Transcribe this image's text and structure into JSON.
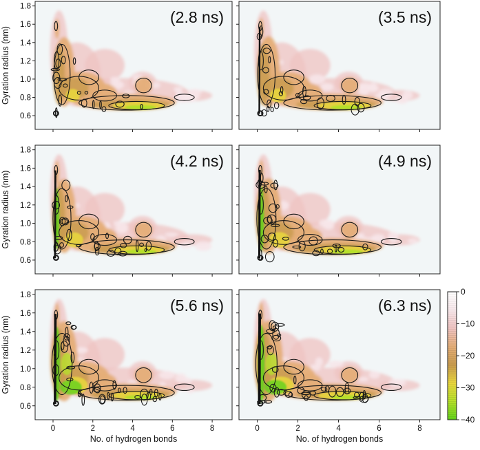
{
  "chart_data": {
    "type": "heatmap",
    "layout": "3 rows x 2 columns, shared x and y axes",
    "x_axis": {
      "label": "No. of hydrogen bonds",
      "range": [
        -0.9,
        9.0
      ],
      "ticks": [
        0,
        2,
        4,
        6,
        8
      ],
      "tick_labels": [
        "0",
        "2",
        "4",
        "6",
        "8"
      ]
    },
    "y_axis": {
      "label": "Gyration radius (nm)",
      "range": [
        0.45,
        1.85
      ],
      "ticks": [
        0.6,
        0.8,
        1.0,
        1.2,
        1.4,
        1.6,
        1.8
      ],
      "tick_labels": [
        "0.6",
        "0.8",
        "1.0",
        "1.2",
        "1.4",
        "1.6",
        "1.8"
      ]
    },
    "colorbar": {
      "range": [
        -40,
        0
      ],
      "ticks": [
        0,
        -10,
        -20,
        -30,
        -40
      ],
      "tick_labels": [
        "0",
        "−10",
        "−20",
        "−30",
        "−40"
      ],
      "colors": [
        "#62d21a",
        "#b5e02a",
        "#e8d53d",
        "#c89b4e",
        "#e5ae78",
        "#efc3c1",
        "#f7e7ea",
        "#ffffff"
      ]
    },
    "background_color": "#f2f6f7",
    "panels": [
      {
        "label": "(2.8 ns)",
        "time_ns": 2.8,
        "row": 0,
        "col": 0,
        "show_ylabel": true,
        "show_xlabel": false,
        "intensity": 0.3
      },
      {
        "label": "(3.5 ns)",
        "time_ns": 3.5,
        "row": 0,
        "col": 1,
        "show_ylabel": false,
        "show_xlabel": false,
        "intensity": 0.4
      },
      {
        "label": "(4.2 ns)",
        "time_ns": 4.2,
        "row": 1,
        "col": 0,
        "show_ylabel": true,
        "show_xlabel": false,
        "intensity": 0.52
      },
      {
        "label": "(4.9 ns)",
        "time_ns": 4.9,
        "row": 1,
        "col": 1,
        "show_ylabel": false,
        "show_xlabel": false,
        "intensity": 0.62
      },
      {
        "label": "(5.6 ns)",
        "time_ns": 5.6,
        "row": 2,
        "col": 0,
        "show_ylabel": true,
        "show_xlabel": true,
        "intensity": 0.8
      },
      {
        "label": "(6.3 ns)",
        "time_ns": 6.3,
        "row": 2,
        "col": 1,
        "show_ylabel": false,
        "show_xlabel": true,
        "intensity": 0.88
      }
    ]
  }
}
